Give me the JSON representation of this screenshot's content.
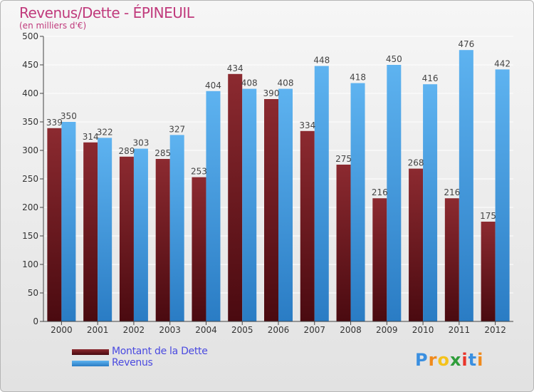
{
  "header": {
    "title": "Revenus/Dette - ÉPINEUIL",
    "subtitle": "(en milliers d'€)"
  },
  "logo": {
    "text": "Proxiti",
    "letters": [
      "P",
      "r",
      "o",
      "x",
      "i",
      "t",
      "i"
    ],
    "colors": [
      "#3a8fe0",
      "#f08a1c",
      "#f4c21c",
      "#2f9d3a",
      "#e9352a",
      "#3a8fe0",
      "#f08a1c"
    ]
  },
  "chart_data": {
    "type": "bar",
    "title": "Revenus/Dette - ÉPINEUIL",
    "subtitle": "(en milliers d'€)",
    "xlabel": "",
    "ylabel": "",
    "ylim": [
      0,
      500
    ],
    "yticks": [
      0,
      50,
      100,
      150,
      200,
      250,
      300,
      350,
      400,
      450,
      500
    ],
    "grid": true,
    "legend_position": "bottom-left",
    "categories": [
      "2000",
      "2001",
      "2002",
      "2003",
      "2004",
      "2005",
      "2006",
      "2007",
      "2008",
      "2009",
      "2010",
      "2011",
      "2012"
    ],
    "series": [
      {
        "name": "Montant de la Dette",
        "color": "#7a1f24",
        "values": [
          339,
          314,
          289,
          285,
          253,
          434,
          390,
          334,
          275,
          216,
          268,
          216,
          175
        ]
      },
      {
        "name": "Revenus",
        "color": "#4ca3e6",
        "values": [
          350,
          322,
          303,
          327,
          404,
          408,
          408,
          448,
          418,
          450,
          416,
          476,
          442
        ]
      }
    ]
  }
}
